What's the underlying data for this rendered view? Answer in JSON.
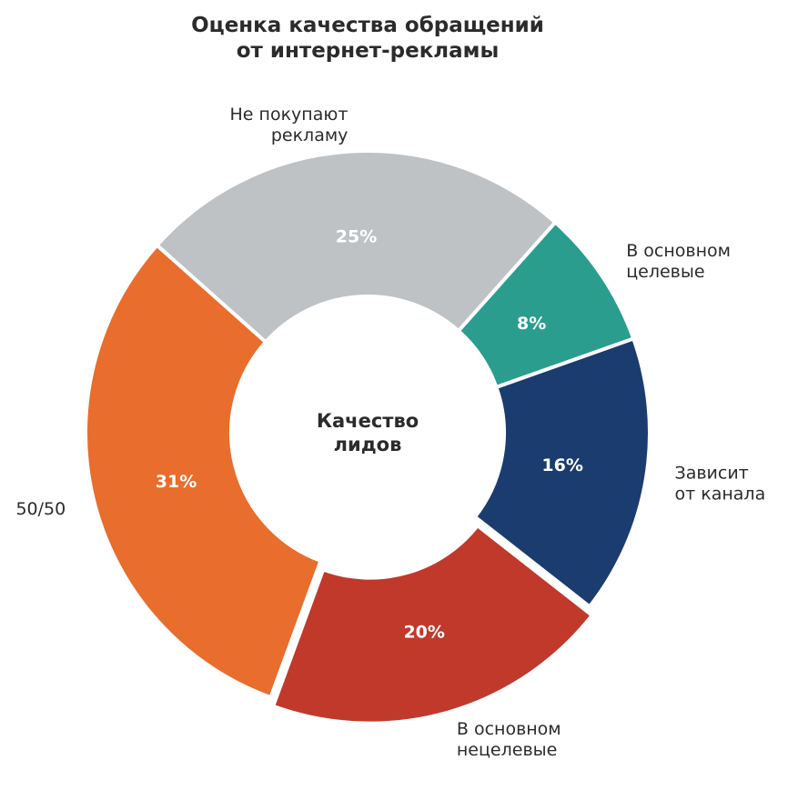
{
  "chart_data": {
    "type": "pie",
    "donut": true,
    "title": [
      "Оценка качества обращений",
      "от интернет-рекламы"
    ],
    "center_label": [
      "Качество",
      "лидов"
    ],
    "slices": [
      {
        "label": [
          "В основном",
          "целевые"
        ],
        "value": 8,
        "pct_label": "8%",
        "color": "#2a9d8f"
      },
      {
        "label": [
          "Зависит",
          "от канала"
        ],
        "value": 16,
        "pct_label": "16%",
        "color": "#1b3c6f"
      },
      {
        "label": [
          "В основном",
          "нецелевые"
        ],
        "value": 20,
        "pct_label": "20%",
        "color": "#c0392b",
        "exploded": true
      },
      {
        "label": [
          "50/50"
        ],
        "value": 31,
        "pct_label": "31%",
        "color": "#e96d2c"
      },
      {
        "label": [
          "Не покупают",
          "рекламу"
        ],
        "value": 25,
        "pct_label": "25%",
        "color": "#bec2c5"
      }
    ],
    "direction": "clockwise"
  }
}
